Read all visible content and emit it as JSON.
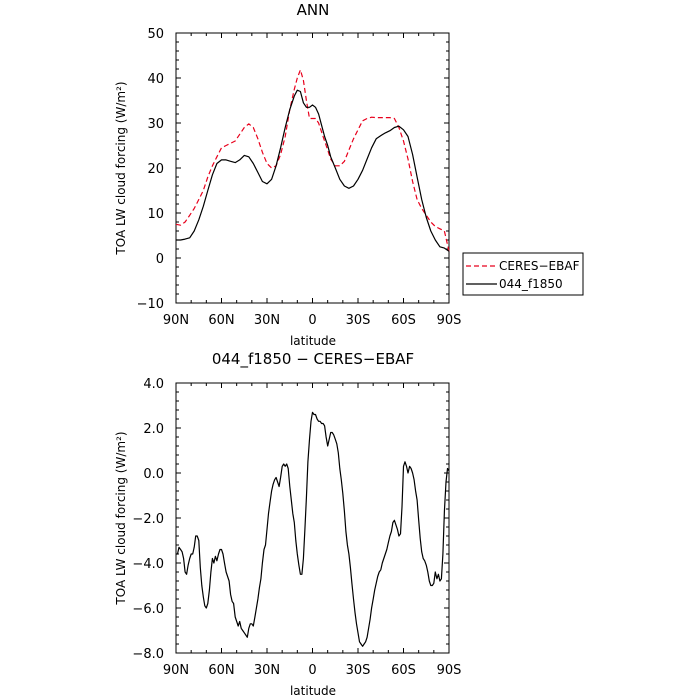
{
  "chart_data": [
    {
      "type": "line",
      "title": "ANN",
      "xlabel": "latitude",
      "ylabel": "TOA LW cloud forcing (W/m²)",
      "x_ticks": [
        "90N",
        "60N",
        "30N",
        "0",
        "30S",
        "60S",
        "90S"
      ],
      "y_ticks": [
        "−10",
        "0",
        "10",
        "20",
        "30",
        "40",
        "50"
      ],
      "xlim": [
        90,
        -90
      ],
      "ylim": [
        -10,
        50
      ],
      "legend_position": "right",
      "series": [
        {
          "name": "CERES−EBAF",
          "color": "#e8001c",
          "style": "dashed",
          "x": [
            90,
            87,
            84,
            81,
            78,
            75,
            72,
            69,
            66,
            63,
            60,
            57,
            54,
            51,
            48,
            45,
            42,
            39,
            36,
            33,
            30,
            27,
            24,
            21,
            18,
            15,
            12,
            10,
            8,
            6,
            4,
            2,
            0,
            -2,
            -4,
            -6,
            -8,
            -10,
            -12,
            -15,
            -18,
            -21,
            -24,
            -27,
            -30,
            -33,
            -36,
            -39,
            -42,
            -45,
            -48,
            -51,
            -54,
            -57,
            -60,
            -63,
            -66,
            -69,
            -72,
            -75,
            -78,
            -81,
            -84,
            -87,
            -90
          ],
          "values": [
            7.5,
            7.3,
            8.0,
            9.5,
            11.0,
            13.0,
            15.0,
            18.0,
            20.5,
            22.5,
            24.5,
            25.0,
            25.5,
            26.0,
            27.5,
            29.0,
            29.8,
            29.0,
            26.5,
            23.5,
            21.0,
            20.0,
            20.5,
            23.0,
            27.0,
            33.0,
            37.5,
            40.0,
            41.8,
            39.5,
            35.0,
            31.0,
            31.0,
            31.0,
            30.0,
            28.0,
            26.0,
            24.0,
            22.0,
            20.5,
            20.5,
            21.5,
            24.0,
            26.5,
            28.5,
            30.5,
            31.0,
            31.3,
            31.2,
            31.2,
            31.2,
            31.2,
            31.0,
            29.0,
            26.0,
            22.0,
            17.0,
            13.0,
            11.0,
            9.5,
            8.0,
            7.0,
            6.5,
            6.0,
            1.5
          ]
        },
        {
          "name": "044_f1850",
          "color": "#000000",
          "style": "solid",
          "x": [
            90,
            87,
            84,
            81,
            78,
            75,
            72,
            69,
            66,
            63,
            60,
            57,
            54,
            51,
            48,
            45,
            42,
            39,
            36,
            33,
            30,
            27,
            24,
            21,
            18,
            15,
            12,
            10,
            8,
            6,
            4,
            2,
            0,
            -2,
            -4,
            -6,
            -8,
            -10,
            -12,
            -15,
            -18,
            -21,
            -24,
            -27,
            -30,
            -33,
            -36,
            -39,
            -42,
            -45,
            -48,
            -51,
            -54,
            -57,
            -60,
            -63,
            -66,
            -69,
            -72,
            -75,
            -78,
            -81,
            -84,
            -87,
            -90
          ],
          "values": [
            4.0,
            4.0,
            4.2,
            4.5,
            6.0,
            8.5,
            11.5,
            15.0,
            18.5,
            21.0,
            21.8,
            21.8,
            21.5,
            21.2,
            21.8,
            22.8,
            22.5,
            21.0,
            19.0,
            17.0,
            16.5,
            17.5,
            20.5,
            24.5,
            29.0,
            33.0,
            36.0,
            37.3,
            37.0,
            34.5,
            33.5,
            33.5,
            34.0,
            33.5,
            32.0,
            29.5,
            27.0,
            25.0,
            22.5,
            20.0,
            17.5,
            16.0,
            15.5,
            16.0,
            17.5,
            19.5,
            22.0,
            24.5,
            26.5,
            27.2,
            27.8,
            28.3,
            29.0,
            29.3,
            28.5,
            27.0,
            23.0,
            18.0,
            13.0,
            9.0,
            6.0,
            4.0,
            2.5,
            2.2,
            1.5
          ]
        }
      ]
    },
    {
      "type": "line",
      "title": "044_f1850 − CERES−EBAF",
      "xlabel": "latitude",
      "ylabel": "TOA LW cloud forcing (W/m²)",
      "x_ticks": [
        "90N",
        "60N",
        "30N",
        "0",
        "30S",
        "60S",
        "90S"
      ],
      "y_ticks": [
        "−8.0",
        "−6.0",
        "−4.0",
        "−2.0",
        "0.0",
        "2.0",
        "4.0"
      ],
      "xlim": [
        90,
        -90
      ],
      "ylim": [
        -8,
        4
      ],
      "series": [
        {
          "color": "#000000",
          "style": "solid",
          "x": [
            90,
            89,
            88,
            87,
            86,
            85,
            84,
            83,
            82,
            81,
            80,
            79,
            78,
            77,
            76,
            75,
            74,
            73,
            72,
            71,
            70,
            69,
            68,
            67,
            66,
            65,
            64,
            63,
            62,
            61,
            60,
            59,
            58,
            57,
            56,
            55,
            54,
            53,
            52,
            51,
            50,
            49,
            48,
            47,
            46,
            45,
            44,
            43,
            42,
            41,
            40,
            39,
            38,
            37,
            36,
            35,
            34,
            33,
            32,
            31,
            30,
            29,
            28,
            27,
            26,
            25,
            24,
            23,
            22,
            21,
            20,
            19,
            18,
            17,
            16,
            15,
            14,
            13,
            12,
            11,
            10,
            9,
            8,
            7,
            6,
            5,
            4,
            3,
            2,
            1,
            0,
            -1,
            -2,
            -3,
            -4,
            -5,
            -6,
            -7,
            -8,
            -9,
            -10,
            -11,
            -12,
            -13,
            -14,
            -15,
            -16,
            -17,
            -18,
            -19,
            -20,
            -21,
            -22,
            -23,
            -24,
            -25,
            -26,
            -27,
            -28,
            -29,
            -30,
            -31,
            -32,
            -33,
            -34,
            -35,
            -36,
            -37,
            -38,
            -39,
            -40,
            -41,
            -42,
            -43,
            -44,
            -45,
            -46,
            -47,
            -48,
            -49,
            -50,
            -51,
            -52,
            -53,
            -54,
            -55,
            -56,
            -57,
            -58,
            -59,
            -60,
            -61,
            -62,
            -63,
            -64,
            -65,
            -66,
            -67,
            -68,
            -69,
            -70,
            -71,
            -72,
            -73,
            -74,
            -75,
            -76,
            -77,
            -78,
            -79,
            -80,
            -81,
            -82,
            -83,
            -84,
            -85,
            -86,
            -87,
            -88,
            -89,
            -90
          ],
          "values": [
            -3.6,
            -3.6,
            -3.3,
            -3.4,
            -3.5,
            -3.8,
            -4.4,
            -4.5,
            -4.1,
            -3.8,
            -3.6,
            -3.6,
            -3.3,
            -2.8,
            -2.8,
            -3.0,
            -4.2,
            -5.0,
            -5.5,
            -5.9,
            -6.0,
            -5.8,
            -5.2,
            -4.4,
            -3.8,
            -4.0,
            -3.7,
            -3.9,
            -3.6,
            -3.4,
            -3.4,
            -3.6,
            -4.0,
            -4.4,
            -4.6,
            -4.8,
            -5.4,
            -5.7,
            -5.8,
            -6.4,
            -6.6,
            -6.8,
            -6.6,
            -6.9,
            -7.0,
            -7.1,
            -7.2,
            -7.3,
            -6.9,
            -6.7,
            -6.7,
            -6.8,
            -6.4,
            -6.0,
            -5.6,
            -5.1,
            -4.7,
            -4.0,
            -3.4,
            -3.2,
            -2.5,
            -1.8,
            -1.3,
            -0.8,
            -0.5,
            -0.3,
            -0.2,
            -0.4,
            -0.6,
            -0.2,
            0.3,
            0.4,
            0.3,
            0.4,
            0.2,
            -0.6,
            -1.2,
            -1.8,
            -2.2,
            -3.0,
            -3.6,
            -4.1,
            -4.5,
            -4.5,
            -3.8,
            -2.5,
            -1.1,
            0.5,
            1.5,
            2.3,
            2.7,
            2.6,
            2.6,
            2.4,
            2.3,
            2.3,
            2.2,
            2.2,
            2.1,
            1.6,
            1.2,
            1.5,
            1.8,
            1.8,
            1.7,
            1.5,
            1.3,
            0.9,
            0.2,
            -0.3,
            -0.9,
            -1.7,
            -2.6,
            -3.2,
            -3.6,
            -4.2,
            -4.9,
            -5.6,
            -6.2,
            -6.7,
            -7.1,
            -7.5,
            -7.6,
            -7.7,
            -7.6,
            -7.5,
            -7.3,
            -6.9,
            -6.5,
            -6.0,
            -5.6,
            -5.2,
            -4.9,
            -4.6,
            -4.4,
            -4.3,
            -4.0,
            -3.8,
            -3.6,
            -3.4,
            -3.1,
            -2.8,
            -2.6,
            -2.2,
            -2.1,
            -2.3,
            -2.5,
            -2.8,
            -2.7,
            -1.5,
            0.3,
            0.5,
            0.3,
            0.0,
            0.3,
            0.2,
            0.0,
            -0.3,
            -0.8,
            -1.2,
            -2.1,
            -2.9,
            -3.5,
            -3.8,
            -3.9,
            -4.1,
            -4.4,
            -4.8,
            -5.0,
            -5.0,
            -4.9,
            -4.4,
            -4.7,
            -4.5,
            -4.8,
            -4.7,
            -3.6,
            -1.7,
            -0.4,
            0.2,
            0.1
          ]
        }
      ]
    }
  ]
}
